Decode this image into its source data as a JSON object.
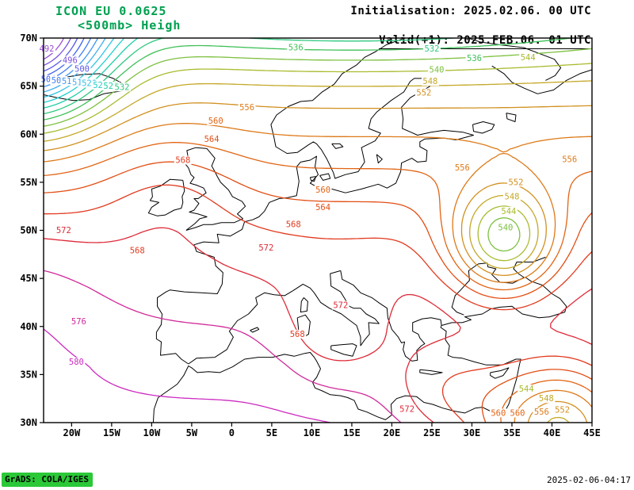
{
  "header": {
    "model_line": "ICON EU  0.0625",
    "field_line": "<500mb> Heigh",
    "init_line": "Initialisation: 2025.02.06. 00 UTC",
    "valid_line": "Valid(+1): 2025.FEB.06. 01 UTC",
    "title_color": "#00a050"
  },
  "footer": {
    "grads_stamp": "GrADS: COLA/IGES",
    "timestamp": "2025-02-06-04:17",
    "stamp_bg": "#2bc838"
  },
  "chart_data": {
    "type": "contour",
    "variable": "500mb Height",
    "model": "ICON EU 0.0625",
    "initialization": "2025.02.06. 00 UTC",
    "valid": "(+1) 2025.FEB.06. 01 UTC",
    "contour_interval": 4,
    "lon_axis": {
      "values": [
        -20,
        -15,
        -10,
        -5,
        0,
        5,
        10,
        15,
        20,
        25,
        30,
        35,
        40,
        45
      ],
      "labels": [
        "20W",
        "15W",
        "10W",
        "5W",
        "0",
        "5E",
        "10E",
        "15E",
        "20E",
        "25E",
        "30E",
        "35E",
        "40E",
        "45E"
      ]
    },
    "lat_axis": {
      "values": [
        30,
        35,
        40,
        45,
        50,
        55,
        60,
        65,
        70
      ],
      "labels": [
        "30N",
        "35N",
        "40N",
        "45N",
        "50N",
        "55N",
        "60N",
        "65N",
        "70N"
      ]
    },
    "contours": [
      {
        "level": 492,
        "color": "#9a4dd6"
      },
      {
        "level": 496,
        "color": "#7a52e0"
      },
      {
        "level": 500,
        "color": "#5a57e8"
      },
      {
        "level": 504,
        "color": "#3f63f0"
      },
      {
        "level": 508,
        "color": "#3f7df2"
      },
      {
        "level": 512,
        "color": "#3f97f4"
      },
      {
        "level": 516,
        "color": "#3fb0f0"
      },
      {
        "level": 520,
        "color": "#2fc4e4"
      },
      {
        "level": 524,
        "color": "#1fd0cc"
      },
      {
        "level": 528,
        "color": "#1fd0a8"
      },
      {
        "level": 532,
        "color": "#2fc980"
      },
      {
        "level": 536,
        "color": "#3fc058"
      },
      {
        "level": 540,
        "color": "#7dc03f"
      },
      {
        "level": 544,
        "color": "#aabb2f"
      },
      {
        "level": 548,
        "color": "#c4a827"
      },
      {
        "level": 552,
        "color": "#d29020"
      },
      {
        "level": 556,
        "color": "#dd7a18"
      },
      {
        "level": 560,
        "color": "#e26414"
      },
      {
        "level": 564,
        "color": "#e24e14"
      },
      {
        "level": 568,
        "color": "#e23a1f"
      },
      {
        "level": 572,
        "color": "#de2a38"
      },
      {
        "level": 576,
        "color": "#d02a9a"
      },
      {
        "level": 580,
        "color": "#cc2ac0"
      }
    ],
    "contour_labels": [
      {
        "level": 492,
        "lon": -23.1,
        "lat": 68.9
      },
      {
        "level": 496,
        "lon": -20.2,
        "lat": 67.7
      },
      {
        "level": 500,
        "lon": -18.7,
        "lat": 66.8
      },
      {
        "level": 504,
        "lon": -22.9,
        "lat": 65.7
      },
      {
        "level": 508,
        "lon": -21.6,
        "lat": 65.6
      },
      {
        "level": 512,
        "lon": -20.3,
        "lat": 65.5
      },
      {
        "level": 516,
        "lon": -19.0,
        "lat": 65.4
      },
      {
        "level": 520,
        "lon": -17.8,
        "lat": 65.3
      },
      {
        "level": 524,
        "lon": -16.4,
        "lat": 65.1
      },
      {
        "level": 528,
        "lon": -15.1,
        "lat": 65.0
      },
      {
        "level": 532,
        "lon": -13.7,
        "lat": 64.9
      },
      {
        "level": 536,
        "lon": 8.0,
        "lat": 69.0
      },
      {
        "level": 532,
        "lon": 25.0,
        "lat": 68.9
      },
      {
        "level": 536,
        "lon": 30.3,
        "lat": 67.9
      },
      {
        "level": 540,
        "lon": 25.6,
        "lat": 66.7
      },
      {
        "level": 544,
        "lon": 37.0,
        "lat": 68.0
      },
      {
        "level": 548,
        "lon": 24.8,
        "lat": 65.5
      },
      {
        "level": 552,
        "lon": 24.0,
        "lat": 64.3
      },
      {
        "level": 556,
        "lon": 1.9,
        "lat": 62.8
      },
      {
        "level": 560,
        "lon": -2.0,
        "lat": 61.4
      },
      {
        "level": 564,
        "lon": -2.5,
        "lat": 59.5
      },
      {
        "level": 568,
        "lon": -6.1,
        "lat": 57.3
      },
      {
        "level": 560,
        "lon": 11.4,
        "lat": 54.2
      },
      {
        "level": 564,
        "lon": 11.4,
        "lat": 52.4
      },
      {
        "level": 568,
        "lon": 7.7,
        "lat": 50.6
      },
      {
        "level": 572,
        "lon": 4.3,
        "lat": 48.2
      },
      {
        "level": 572,
        "lon": -21.0,
        "lat": 50.0
      },
      {
        "level": 568,
        "lon": -11.8,
        "lat": 47.9
      },
      {
        "level": 576,
        "lon": -19.1,
        "lat": 40.5
      },
      {
        "level": 580,
        "lon": -19.4,
        "lat": 36.3
      },
      {
        "level": 572,
        "lon": 13.6,
        "lat": 42.2
      },
      {
        "level": 568,
        "lon": 8.2,
        "lat": 39.2
      },
      {
        "level": 572,
        "lon": 21.9,
        "lat": 31.4
      },
      {
        "level": 552,
        "lon": 35.5,
        "lat": 55.0
      },
      {
        "level": 548,
        "lon": 35.0,
        "lat": 53.5
      },
      {
        "level": 544,
        "lon": 34.6,
        "lat": 52.0
      },
      {
        "level": 540,
        "lon": 34.2,
        "lat": 50.3
      },
      {
        "level": 556,
        "lon": 42.2,
        "lat": 57.4
      },
      {
        "level": 556,
        "lon": 28.8,
        "lat": 56.5
      },
      {
        "level": 560,
        "lon": 33.3,
        "lat": 31.0
      },
      {
        "level": 560,
        "lon": 35.7,
        "lat": 31.0
      },
      {
        "level": 556,
        "lon": 38.7,
        "lat": 31.1
      },
      {
        "level": 552,
        "lon": 41.3,
        "lat": 31.3
      },
      {
        "level": 548,
        "lon": 39.3,
        "lat": 32.5
      },
      {
        "level": 544,
        "lon": 36.8,
        "lat": 33.5
      }
    ]
  }
}
